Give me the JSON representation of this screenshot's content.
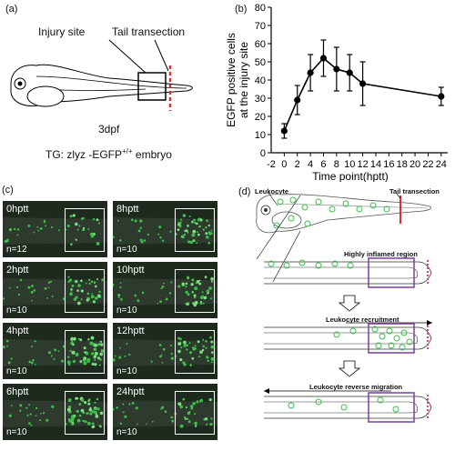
{
  "panel_a": {
    "label": "(a)",
    "injury_site": "Injury site",
    "tail_transection": "Tail transection",
    "age": "3dpf",
    "caption_main": "TG: zlyz -EGFP",
    "caption_sup": "+/+",
    "caption_tail": " embryo"
  },
  "panel_b": {
    "label": "(b)",
    "ylabel_line1": "EGFP positive cells",
    "ylabel_line2": "at the injury site",
    "xlabel": "Time point(hptt)"
  },
  "chart_data": {
    "type": "line",
    "x": [
      0,
      2,
      4,
      6,
      8,
      10,
      12,
      24
    ],
    "y": [
      12,
      29,
      44,
      52,
      46,
      44,
      38,
      31
    ],
    "err": [
      4,
      8,
      10,
      10,
      12,
      10,
      12,
      5
    ],
    "xticks": [
      0,
      2,
      4,
      6,
      8,
      10,
      12,
      14,
      16,
      18,
      20,
      22,
      24
    ],
    "yticks": [
      0,
      10,
      20,
      30,
      40,
      50,
      60,
      70,
      80
    ],
    "xlim": [
      -2,
      25
    ],
    "ylim": [
      0,
      80
    ],
    "ylabel": "EGFP positive cells at the injury site",
    "xlabel": "Time point(hptt)"
  },
  "panel_c": {
    "label": "(c)",
    "images": [
      {
        "time": "0hptt",
        "n": "n=12",
        "density": 0.35
      },
      {
        "time": "8hptt",
        "n": "n=10",
        "density": 0.75
      },
      {
        "time": "2hptt",
        "n": "n=10",
        "density": 0.6
      },
      {
        "time": "10hptt",
        "n": "n=10",
        "density": 0.7
      },
      {
        "time": "4hptt",
        "n": "n=10",
        "density": 0.85
      },
      {
        "time": "12hptt",
        "n": "n=10",
        "density": 0.65
      },
      {
        "time": "6hptt",
        "n": "n=10",
        "density": 0.9
      },
      {
        "time": "24hptt",
        "n": "n=10",
        "density": 0.45
      }
    ]
  },
  "panel_d": {
    "label": "(d)",
    "leukocyte": "Leukocyte",
    "tail_transection": "Tail transection",
    "inflamed": "Highly inflamed region",
    "recruitment": "Leukocyte recruitment",
    "reverse": "Leukocyte reverse migration"
  },
  "colors": {
    "red": "#d9302c",
    "green": "#3cc04a",
    "purple": "#7a3fa0",
    "pink": "#e0408a"
  }
}
